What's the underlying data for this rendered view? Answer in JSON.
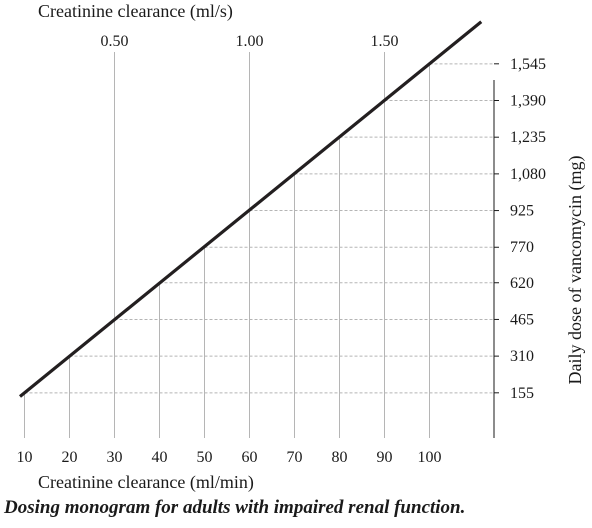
{
  "chart_data": {
    "type": "line",
    "caption": "Dosing monogram for adults with impaired renal function.",
    "x_bottom": {
      "label": "Creatinine clearance (ml/min)",
      "ticks": [
        10,
        20,
        30,
        40,
        50,
        60,
        70,
        80,
        90,
        100
      ],
      "lim": [
        5,
        108
      ]
    },
    "x_top": {
      "label": "Creatinine clearance (ml/s)",
      "ticks": [
        "0.50",
        "1.00",
        "1.50"
      ],
      "tick_values_ml_min": [
        30,
        60,
        90
      ]
    },
    "y_right": {
      "label": "Daily dose of vancomycin (mg)",
      "ticks": [
        "155",
        "310",
        "465",
        "620",
        "770",
        "925",
        "1,080",
        "1,235",
        "1,390",
        "1,545"
      ],
      "tick_values": [
        155,
        310,
        465,
        620,
        770,
        925,
        1080,
        1235,
        1390,
        1545
      ],
      "lim": [
        0,
        1680
      ]
    },
    "series": [
      {
        "x": [
          10,
          20,
          30,
          40,
          50,
          60,
          70,
          80,
          90,
          100
        ],
        "y": [
          155,
          310,
          465,
          620,
          770,
          925,
          1080,
          1235,
          1390,
          1545
        ],
        "color": "#231f20"
      }
    ],
    "grid": "vertical solid lines at top-axis ticks; dashed guide lines from each point to the right axis",
    "colors": {
      "line": "#231f20",
      "grid": "#b5b5b5",
      "axis": "#1a1a1a"
    }
  }
}
